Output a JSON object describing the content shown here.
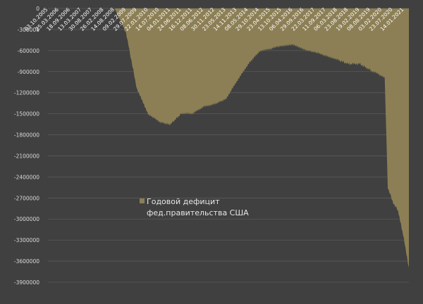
{
  "chart_data": {
    "type": "area",
    "y_ticks": [
      "0",
      "-300000",
      "-600000",
      "-900000",
      "-1200000",
      "-1500000",
      "-1800000",
      "-2100000",
      "-2400000",
      "-2700000",
      "-3000000",
      "-3300000",
      "-3600000",
      "-3900000"
    ],
    "ylim": [
      -3900000,
      0
    ],
    "x_ticks": [
      "03.10.2005",
      "25.03.2006",
      "18.09.2006",
      "13.03.2007",
      "30.08.2007",
      "26.02.2008",
      "14.08.2008",
      "09.02.2009",
      "29.07.2009",
      "22.01.2010",
      "14.07.2010",
      "04.01.2011",
      "24.06.2011",
      "16.12.2011",
      "08.06.2012",
      "30.11.2012",
      "23.05.2013",
      "14.11.2013",
      "08.05.2014",
      "29.10.2014",
      "23.04.2015",
      "13.10.2015",
      "06.04.2016",
      "29.09.2016",
      "22.03.2017",
      "11.09.2017",
      "06.03.2018",
      "23.08.2018",
      "19.02.2019",
      "08.08.2019",
      "03.02.2020",
      "23.07.2020",
      "14.01.2021"
    ],
    "series": [
      {
        "name": "Годовой дефицит фед.правительства США",
        "color": "#8c7f55",
        "x": [
          "03.10.2005",
          "18.09.2006",
          "13.03.2007",
          "30.08.2007",
          "26.02.2008",
          "14.08.2008",
          "09.02.2009",
          "29.07.2009",
          "22.01.2010",
          "14.07.2010",
          "04.01.2011",
          "24.06.2011",
          "16.12.2011",
          "08.06.2012",
          "30.11.2012",
          "23.05.2013",
          "14.11.2013",
          "08.05.2014",
          "29.10.2014",
          "23.04.2015",
          "13.10.2015",
          "06.04.2016",
          "29.09.2016",
          "22.03.2017",
          "11.09.2017",
          "06.03.2018",
          "23.08.2018",
          "19.02.2019",
          "08.08.2019",
          "03.02.2020",
          "18.03.2020",
          "05.05.2020",
          "23.07.2020",
          "10.10.2020",
          "14.01.2021",
          "01.04.2021"
        ],
        "values": [
          0,
          0,
          0,
          0,
          0,
          0,
          -350000,
          -1150000,
          -1500000,
          -1620000,
          -1650000,
          -1500000,
          -1500000,
          -1400000,
          -1360000,
          -1300000,
          -1040000,
          -800000,
          -620000,
          -580000,
          -530000,
          -520000,
          -580000,
          -630000,
          -670000,
          -730000,
          -790000,
          -790000,
          -880000,
          -960000,
          -990000,
          -2550000,
          -2760000,
          -2880000,
          -3280000,
          -3700000
        ]
      }
    ],
    "legend": {
      "position": "center",
      "label": "Годовой дефицит фед.правительства США"
    },
    "grid": true
  }
}
